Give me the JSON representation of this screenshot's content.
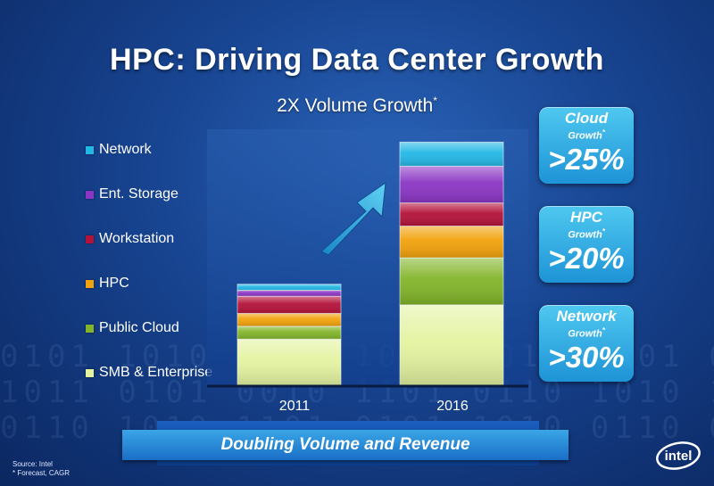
{
  "title": "HPC: Driving Data Center Growth",
  "subtitle": "2X Volume Growth",
  "subtitle_mark": "*",
  "colors": {
    "Network": "#22b8e6",
    "Ent. Storage": "#8b35c4",
    "Workstation": "#b3123a",
    "HPC": "#f2a20c",
    "Public Cloud": "#82b52a",
    "SMB & Enterprise": "#e3f3a0"
  },
  "chart_data": {
    "type": "bar",
    "stacked": true,
    "categories": [
      "2011",
      "2016"
    ],
    "series": [
      {
        "name": "SMB & Enterprise",
        "values": [
          55,
          95
        ]
      },
      {
        "name": "Public Cloud",
        "values": [
          15,
          55
        ]
      },
      {
        "name": "HPC",
        "values": [
          15,
          37
        ]
      },
      {
        "name": "Workstation",
        "values": [
          20,
          27
        ]
      },
      {
        "name": "Ent. Storage",
        "values": [
          7,
          43
        ]
      },
      {
        "name": "Network",
        "values": [
          7,
          28
        ]
      }
    ],
    "legend": "left",
    "grid": false,
    "ylim": [
      0,
      300
    ]
  },
  "callouts": [
    {
      "name": "Cloud",
      "sub": "Growth",
      "mark": "*",
      "value": ">25%"
    },
    {
      "name": "HPC",
      "sub": "Growth",
      "mark": "*",
      "value": ">20%"
    },
    {
      "name": "Network",
      "sub": "Growth",
      "mark": "*",
      "value": ">30%"
    }
  ],
  "banner": "Doubling Volume and Revenue",
  "footnote": {
    "source": "Source: Intel",
    "forecast": "* Forecast, CAGR"
  },
  "logo": "intel"
}
